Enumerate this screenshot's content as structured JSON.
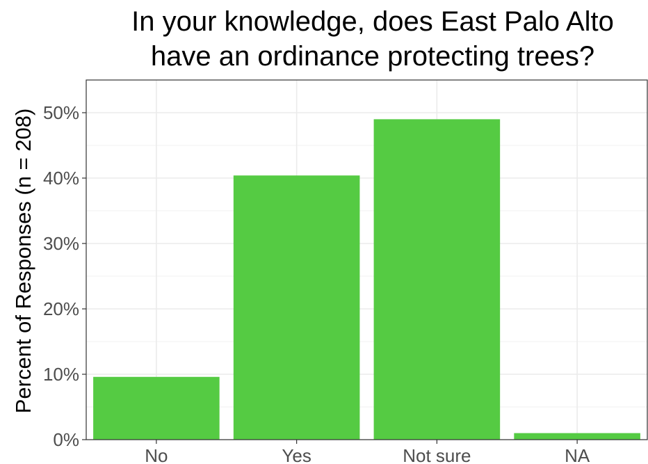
{
  "chart_data": {
    "type": "bar",
    "title": "In your knowledge, does East Palo Alto have an ordinance protecting trees?",
    "title_lines": [
      "In your knowledge, does East Palo Alto",
      "have an ordinance protecting trees?"
    ],
    "xlabel": "",
    "ylabel": "Percent of Responses (n = 208)",
    "categories": [
      "No",
      "Yes",
      "Not sure",
      "NA"
    ],
    "values": [
      9.6,
      40.4,
      49.0,
      1.0
    ],
    "ylim": [
      0,
      55
    ],
    "yticks": [
      0,
      10,
      20,
      30,
      40,
      50
    ],
    "ytick_labels": [
      "0%",
      "10%",
      "20%",
      "30%",
      "40%",
      "50%"
    ],
    "bar_color": "#55cb43",
    "grid": true,
    "legend": "none"
  }
}
